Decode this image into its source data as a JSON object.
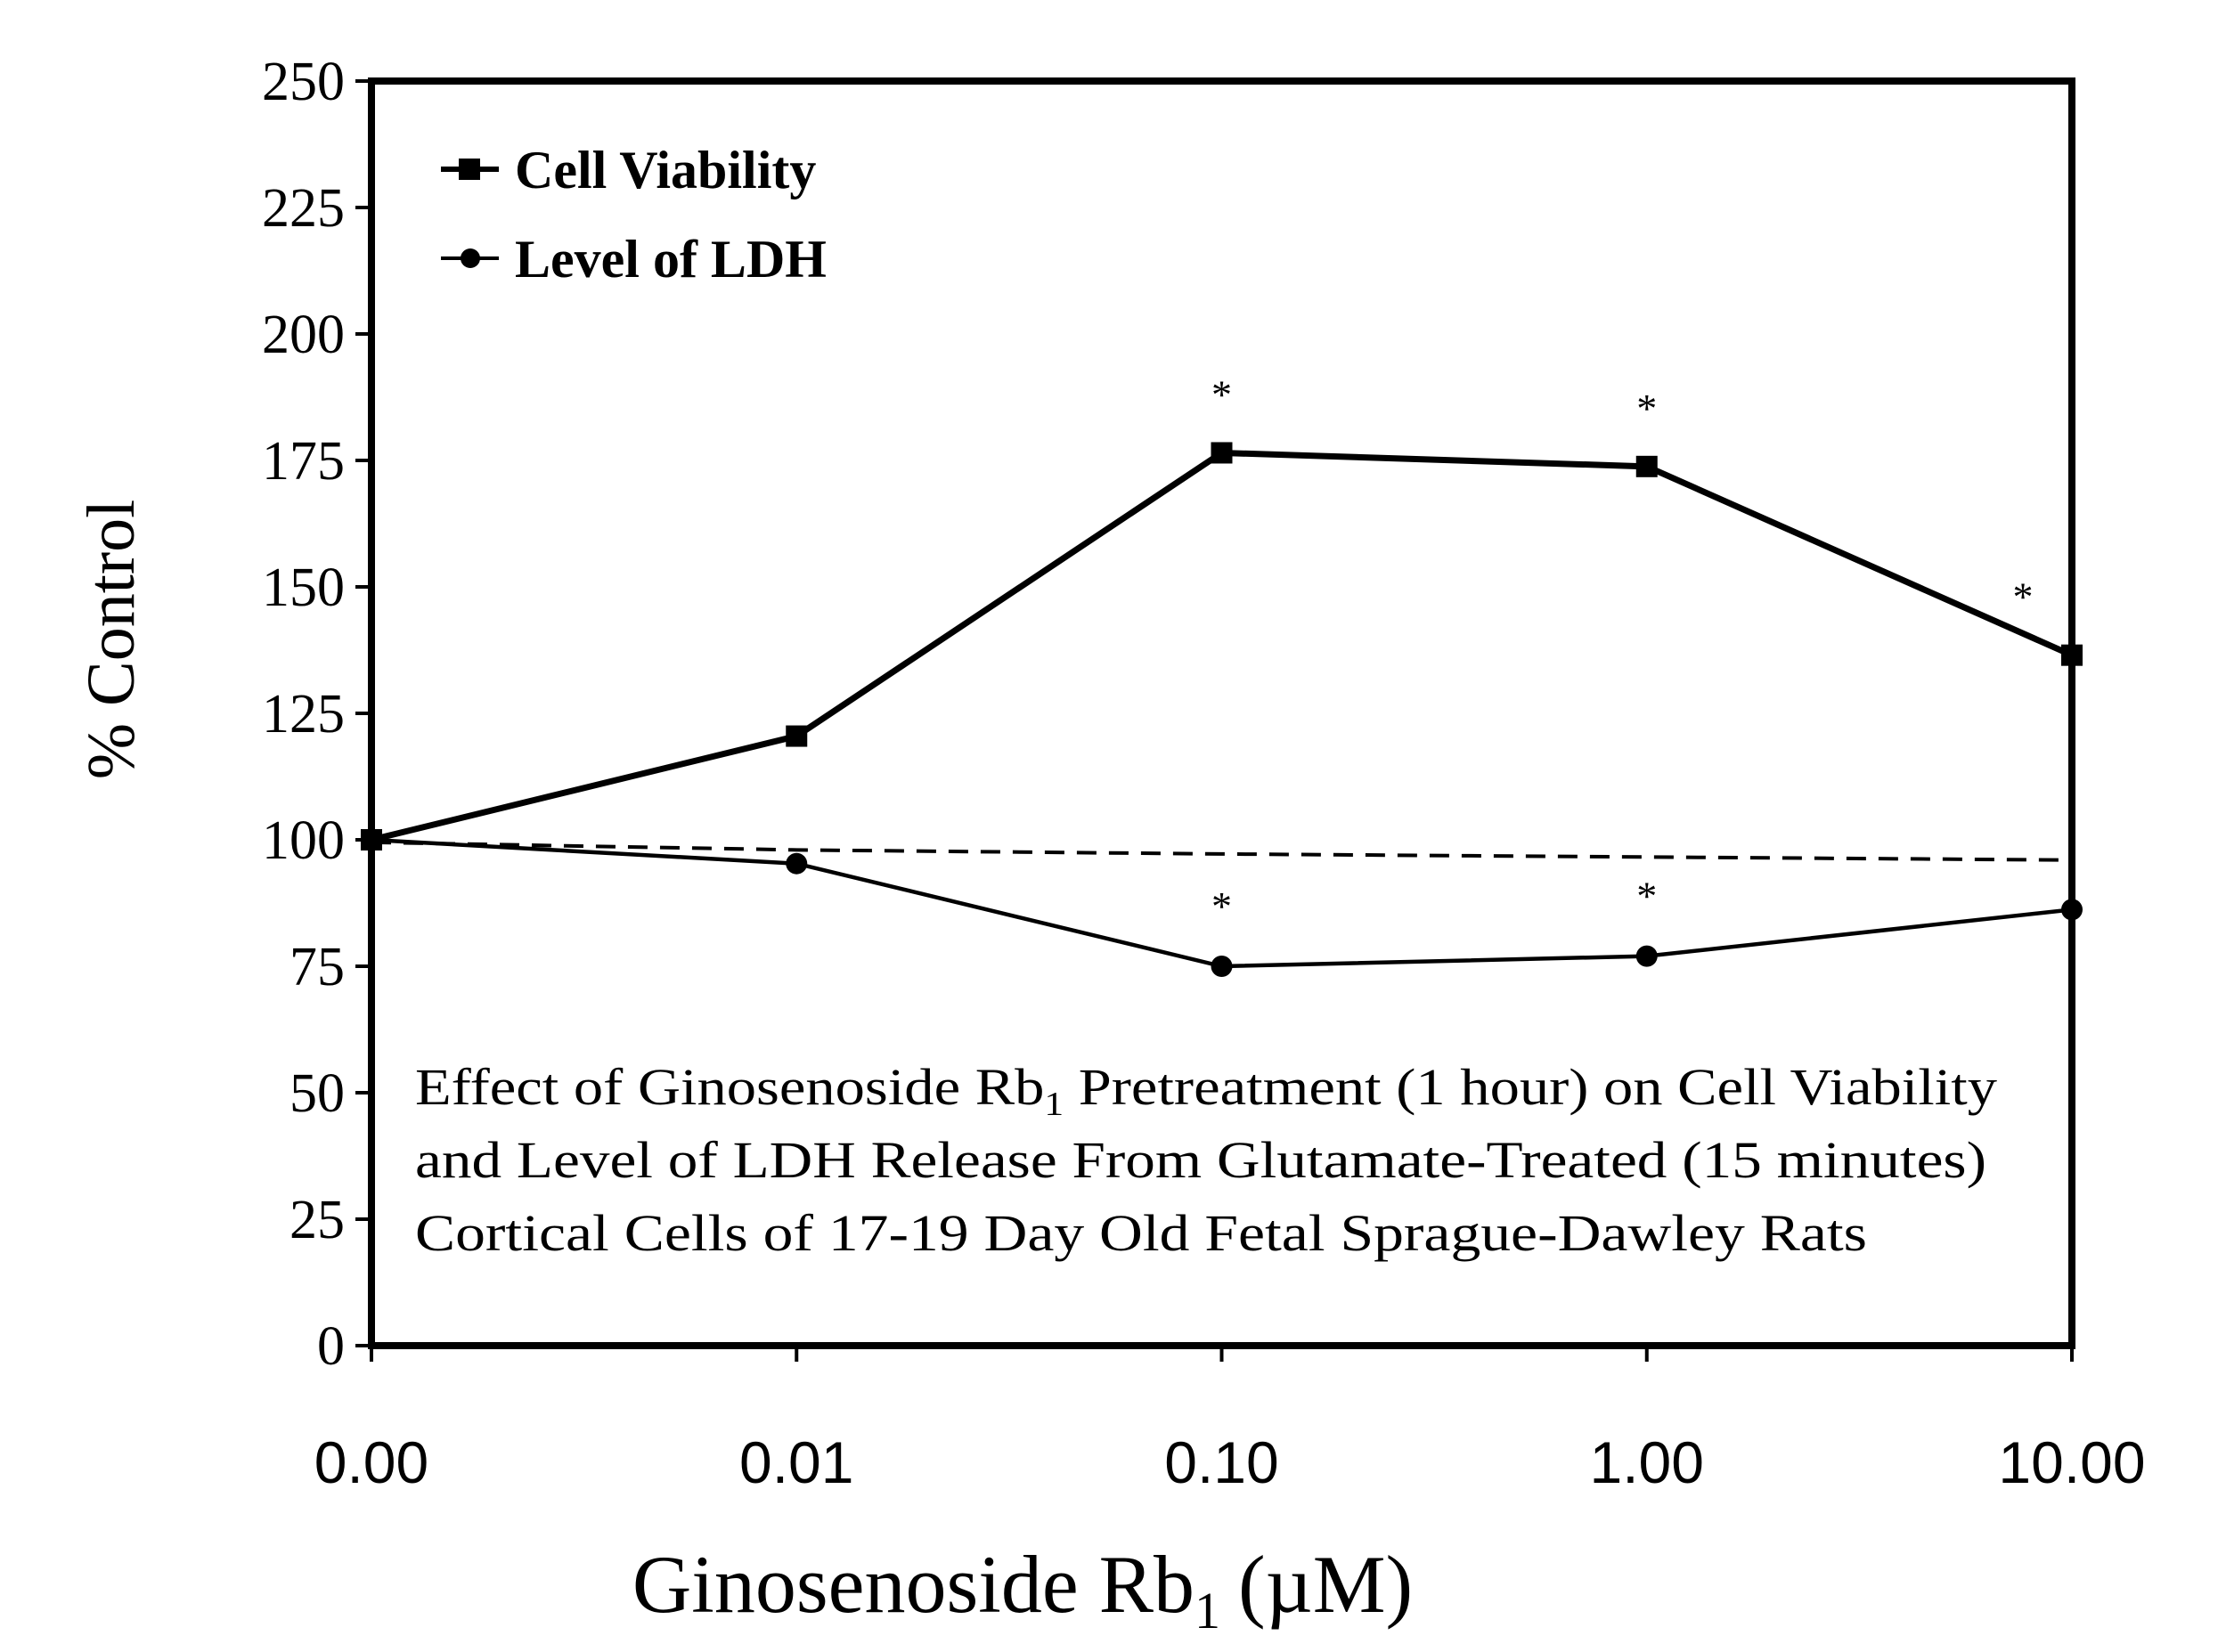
{
  "chart_data": {
    "type": "line",
    "categories": [
      "0.00",
      "0.01",
      "0.10",
      "1.00",
      "10.00"
    ],
    "series": [
      {
        "name": "Cell Viability",
        "marker": "square",
        "values": [
          100,
          120.5,
          176.5,
          173.8,
          136.5
        ],
        "significant": [
          false,
          false,
          true,
          true,
          true
        ]
      },
      {
        "name": "Level of LDH",
        "marker": "circle",
        "values": [
          100,
          95.3,
          75,
          77,
          86.2
        ],
        "significant": [
          false,
          false,
          true,
          true,
          false
        ]
      }
    ],
    "reference_line": {
      "style": "dashed",
      "values": [
        99.5,
        98,
        97.2,
        96.6,
        96
      ]
    },
    "significance_marker": "*",
    "ylabel": "% Control",
    "xlabel": "Ginosenoside Rb",
    "xlabel_subscript": "1",
    "xlabel_unit": "(µM)",
    "ylim": [
      0,
      250
    ],
    "yticks": [
      0,
      25,
      50,
      75,
      100,
      125,
      150,
      175,
      200,
      225,
      250
    ],
    "grid": false,
    "legend_position": "top-left",
    "annotation": {
      "line1_pre": "Effect of Ginosenoside Rb",
      "line1_sub": "1",
      "line1_post": " Pretreatment (1 hour) on Cell Viability",
      "line2": "and Level of LDH Release From Glutamate-Treated (15 minutes)",
      "line3": "Cortical Cells of 17-19 Day Old Fetal Sprague-Dawley Rats"
    },
    "colors": {
      "line": "#000000",
      "background": "#ffffff"
    }
  }
}
